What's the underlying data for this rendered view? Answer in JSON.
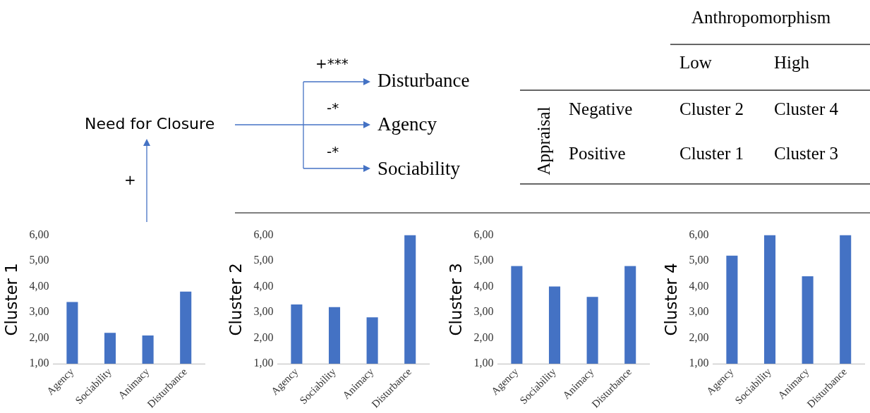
{
  "chart_data": [
    {
      "type": "other",
      "annotations": [
        "Need for Closure",
        "+",
        "+***",
        "-*",
        "-*",
        "Disturbance",
        "Agency",
        "Sociability",
        "Anthropomorphism",
        "Low",
        "High",
        "Appraisal",
        "Negative",
        "Cluster 2",
        "Cluster 4",
        "Positive",
        "Cluster 1",
        "Cluster 3"
      ]
    },
    {
      "type": "bar",
      "ylabel": "Cluster 1",
      "categories": [
        "Agency",
        "Sociability",
        "Animacy",
        "Disturbance"
      ],
      "values": [
        3.4,
        2.2,
        2.1,
        3.8
      ],
      "color": "#4472c4",
      "ylim": [
        1,
        6
      ],
      "yticks": [
        {
          "value": 1,
          "label": "1,00"
        },
        {
          "value": 2,
          "label": "2,00"
        },
        {
          "value": 3,
          "label": "3,00"
        },
        {
          "value": 4,
          "label": "4,00"
        },
        {
          "value": 5,
          "label": "5,00"
        },
        {
          "value": 6,
          "label": "6,00"
        }
      ],
      "grid": false,
      "legend": false
    },
    {
      "type": "bar",
      "ylabel": "Cluster 2",
      "categories": [
        "Agency",
        "Sociability",
        "Animacy",
        "Disturbance"
      ],
      "values": [
        3.3,
        3.2,
        2.8,
        6.0
      ],
      "color": "#4472c4",
      "ylim": [
        1,
        6
      ],
      "yticks": [
        {
          "value": 1,
          "label": "1,00"
        },
        {
          "value": 2,
          "label": "2,00"
        },
        {
          "value": 3,
          "label": "3,00"
        },
        {
          "value": 4,
          "label": "4,00"
        },
        {
          "value": 5,
          "label": "5,00"
        },
        {
          "value": 6,
          "label": "6,00"
        }
      ],
      "grid": false,
      "legend": false
    },
    {
      "type": "bar",
      "ylabel": "Cluster 3",
      "categories": [
        "Agency",
        "Sociability",
        "Animacy",
        "Disturbance"
      ],
      "values": [
        4.8,
        4.0,
        3.6,
        4.8
      ],
      "color": "#4472c4",
      "ylim": [
        1,
        6
      ],
      "yticks": [
        {
          "value": 1,
          "label": "1,00"
        },
        {
          "value": 2,
          "label": "2,00"
        },
        {
          "value": 3,
          "label": "3,00"
        },
        {
          "value": 4,
          "label": "4,00"
        },
        {
          "value": 5,
          "label": "5,00"
        },
        {
          "value": 6,
          "label": "6,00"
        }
      ],
      "grid": false,
      "legend": false
    },
    {
      "type": "bar",
      "ylabel": "Cluster 4",
      "categories": [
        "Agency",
        "Sociability",
        "Animacy",
        "Disturbance"
      ],
      "values": [
        5.2,
        6.0,
        4.4,
        6.0
      ],
      "color": "#4472c4",
      "ylim": [
        1,
        6
      ],
      "yticks": [
        {
          "value": 1,
          "label": "1,00"
        },
        {
          "value": 2,
          "label": "2,00"
        },
        {
          "value": 3,
          "label": "3,00"
        },
        {
          "value": 4,
          "label": "4,00"
        },
        {
          "value": 5,
          "label": "5,00"
        },
        {
          "value": 6,
          "label": "6,00"
        }
      ],
      "grid": false,
      "legend": false
    }
  ]
}
